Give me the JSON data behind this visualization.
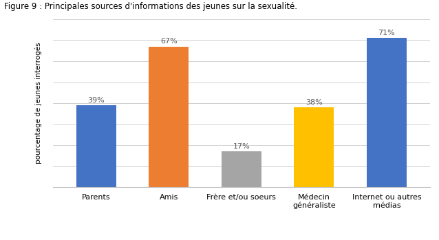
{
  "categories": [
    "Parents",
    "Amis",
    "Frère et/ou soeurs",
    "Médecin\ngénéraliste",
    "Internet ou autres\nmédias"
  ],
  "legend_labels": [
    "Parents",
    "Amis",
    "Frère et/ou soeurs",
    "Médecin généraliste",
    "Internet ou autres médias"
  ],
  "values": [
    39,
    67,
    17,
    38,
    71
  ],
  "bar_colors": [
    "#4472C4",
    "#ED7D31",
    "#A5A5A5",
    "#FFC000",
    "#4472C4"
  ],
  "legend_colors": [
    "#4472C4",
    "#ED7D31",
    "#A5A5A5",
    "#FFC000",
    "#2F5597"
  ],
  "ylabel": "pourcentage de jeunes interrogés",
  "ylim": [
    0,
    80
  ],
  "yticks": [],
  "bar_width": 0.55,
  "title": "Figure 9 : Principales sources d'informations des jeunes sur la sexualité.",
  "title_fontsize": 8.5,
  "axis_label_fontsize": 7.5,
  "tick_fontsize": 8,
  "value_fontsize": 8,
  "legend_fontsize": 7.5,
  "background_color": "#FFFFFF",
  "grid_color": "#BFBFBF",
  "grid_yticks": [
    0,
    10,
    20,
    30,
    40,
    50,
    60,
    70,
    80
  ]
}
